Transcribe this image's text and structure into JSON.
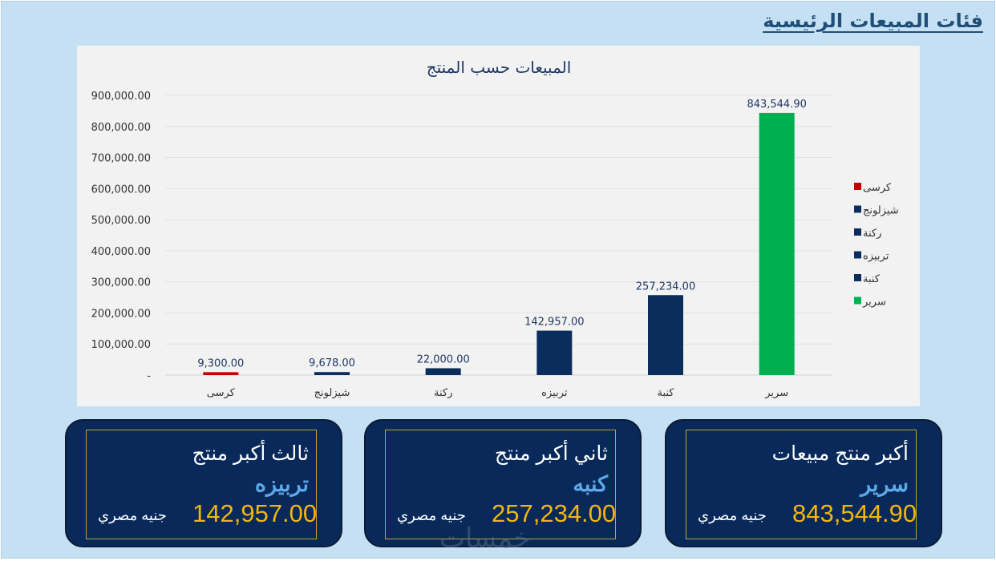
{
  "page": {
    "title": "فئات المبيعات الرئيسية",
    "watermark": "خمسات"
  },
  "colors": {
    "background": "#c5e0f3",
    "plot_area": "#f2f2f2",
    "bar_default": "#0b2d5e",
    "bar_max": "#00b050",
    "bar_min": "#c00000",
    "card": "#08295a",
    "card_border": "#c8a22d",
    "value_gold": "#f3b60e",
    "product_blue": "#5fa8e8"
  },
  "chart_data": {
    "type": "bar",
    "title": "المبيعات حسب المنتج",
    "categories": [
      "كرسى",
      "شيزلونج",
      "ركنة",
      "تربيزه",
      "كنبة",
      "سرير"
    ],
    "values": [
      9300.0,
      9678.0,
      22000.0,
      142957.0,
      257234.0,
      843544.9
    ],
    "data_labels": [
      "9,300.00",
      "9,678.00",
      "22,000.00",
      "142,957.00",
      "257,234.00",
      "843,544.90"
    ],
    "bar_colors": [
      "#c00000",
      "#0b2d5e",
      "#0b2d5e",
      "#0b2d5e",
      "#0b2d5e",
      "#00b050"
    ],
    "ylim": [
      0,
      900000
    ],
    "yticks": [
      0,
      100000,
      200000,
      300000,
      400000,
      500000,
      600000,
      700000,
      800000,
      900000
    ],
    "ytick_labels": [
      "-",
      "100,000.00",
      "200,000.00",
      "300,000.00",
      "400,000.00",
      "500,000.00",
      "600,000.00",
      "700,000.00",
      "800,000.00",
      "900,000.00"
    ],
    "grid": true,
    "xlabel": "",
    "ylabel": "",
    "legend_position": "right",
    "legend": [
      {
        "label": "كرسى",
        "color": "#c00000"
      },
      {
        "label": "شيزلونج",
        "color": "#0b2d5e"
      },
      {
        "label": "ركنة",
        "color": "#0b2d5e"
      },
      {
        "label": "تربيزه",
        "color": "#0b2d5e"
      },
      {
        "label": "كنبة",
        "color": "#0b2d5e"
      },
      {
        "label": "سرير",
        "color": "#00b050"
      }
    ]
  },
  "kpis": [
    {
      "title": "أكبر منتج مبيعات",
      "product": "سرير",
      "value": "843,544.90",
      "currency": "جنيه مصري"
    },
    {
      "title": "ثاني أكبر منتج",
      "product": "كنبه",
      "value": "257,234.00",
      "currency": "جنيه مصري"
    },
    {
      "title": "ثالث أكبر منتج",
      "product": "تربيزه",
      "value": "142,957.00",
      "currency": "جنيه مصري"
    }
  ]
}
